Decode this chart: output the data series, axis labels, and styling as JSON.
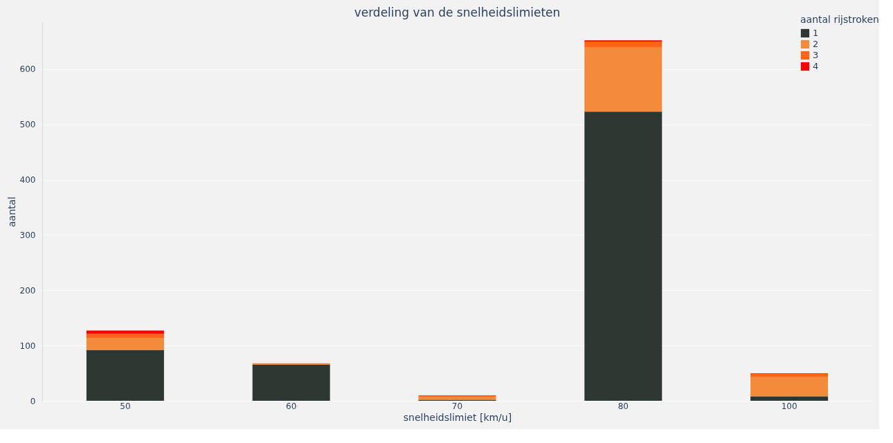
{
  "chart_data": {
    "type": "bar",
    "stacked": true,
    "title": "verdeling van de snelheidslimieten",
    "xlabel": "snelheidslimiet [km/u]",
    "ylabel": "aantal",
    "legend_title": "aantal rijstroken",
    "categories": [
      "50",
      "60",
      "70",
      "80",
      "100"
    ],
    "series": [
      {
        "name": "1",
        "color": "#2d3833",
        "values": [
          92,
          65,
          2,
          523,
          8
        ]
      },
      {
        "name": "2",
        "color": "#f28c3c",
        "values": [
          22,
          3,
          5,
          116,
          35
        ]
      },
      {
        "name": "3",
        "color": "#ff6414",
        "values": [
          7,
          0,
          3,
          11,
          7
        ]
      },
      {
        "name": "4",
        "color": "#ff0000",
        "values": [
          6,
          0,
          0,
          2,
          0
        ]
      }
    ],
    "ylim": [
      0,
      685
    ],
    "yticks": [
      0,
      100,
      200,
      300,
      400,
      500,
      600
    ],
    "grid": "y",
    "legend": "top right"
  }
}
